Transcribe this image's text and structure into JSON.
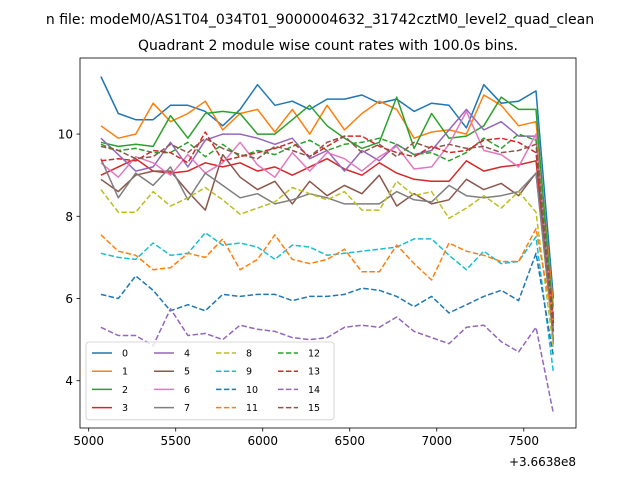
{
  "chart_data": {
    "type": "line",
    "suptitle": "n file: modeM0/AS1T04_034T01_9000004632_31742cztM0_level2_quad_clean",
    "title": "Quadrant 2 module wise count rates with 100.0s bins.",
    "xlabel": "",
    "ylabel": "",
    "x_offset_label": "+3.6638e8",
    "xlim": [
      4950,
      7800
    ],
    "ylim": [
      2.85,
      11.85
    ],
    "xticks": [
      5000,
      5500,
      6000,
      6500,
      7000,
      7500
    ],
    "xtick_labels": [
      "5000",
      "5500",
      "6000",
      "6500",
      "7000",
      "7500"
    ],
    "yticks": [
      4,
      6,
      8,
      10
    ],
    "ytick_labels": [
      "4",
      "6",
      "8",
      "10"
    ],
    "grid": false,
    "legend_position": "lower-left",
    "legend_columns": 4,
    "x": [
      5070,
      5170,
      5270,
      5370,
      5470,
      5570,
      5670,
      5770,
      5870,
      5970,
      6070,
      6170,
      6270,
      6370,
      6470,
      6570,
      6670,
      6770,
      6870,
      6970,
      7070,
      7170,
      7270,
      7370,
      7470,
      7570,
      7670
    ],
    "series": [
      {
        "name": "0",
        "color": "#1f77b4",
        "dash": "solid",
        "values": [
          11.4,
          10.5,
          10.35,
          10.35,
          10.7,
          10.7,
          10.55,
          10.2,
          10.6,
          11.2,
          10.7,
          10.8,
          10.6,
          10.85,
          10.85,
          10.95,
          10.75,
          10.85,
          10.55,
          10.75,
          10.7,
          10.15,
          11.2,
          10.75,
          10.8,
          11.05,
          6.0
        ]
      },
      {
        "name": "1",
        "color": "#ff7f0e",
        "dash": "solid",
        "values": [
          10.2,
          9.9,
          10.0,
          10.75,
          10.3,
          10.5,
          10.8,
          10.1,
          10.5,
          10.6,
          10.05,
          10.6,
          10.0,
          10.7,
          10.1,
          10.5,
          10.8,
          10.6,
          9.9,
          10.05,
          10.1,
          10.0,
          10.95,
          10.7,
          10.2,
          10.3,
          5.8
        ]
      },
      {
        "name": "2",
        "color": "#2ca02c",
        "dash": "solid",
        "values": [
          9.8,
          9.7,
          9.75,
          9.7,
          10.45,
          9.9,
          10.5,
          10.55,
          10.5,
          10.0,
          10.0,
          10.35,
          10.7,
          10.2,
          9.9,
          9.65,
          9.8,
          10.9,
          9.65,
          10.5,
          9.9,
          9.95,
          10.2,
          10.9,
          10.6,
          10.6,
          5.4
        ]
      },
      {
        "name": "3",
        "color": "#d62728",
        "dash": "solid",
        "values": [
          9.0,
          9.2,
          9.4,
          9.1,
          9.05,
          9.1,
          9.3,
          9.2,
          9.3,
          9.1,
          9.2,
          9.0,
          9.2,
          9.4,
          9.15,
          9.0,
          9.3,
          9.05,
          8.9,
          8.85,
          8.85,
          9.35,
          9.1,
          9.2,
          9.25,
          9.35,
          5.5
        ]
      },
      {
        "name": "4",
        "color": "#9467bd",
        "dash": "solid",
        "values": [
          9.9,
          9.5,
          9.1,
          9.2,
          9.8,
          9.2,
          9.85,
          10.0,
          10.0,
          9.9,
          9.75,
          9.9,
          9.4,
          9.6,
          9.1,
          9.6,
          9.35,
          9.75,
          9.5,
          9.6,
          10.1,
          10.6,
          10.1,
          10.3,
          9.95,
          9.95,
          4.9
        ]
      },
      {
        "name": "5",
        "color": "#8c564b",
        "dash": "solid",
        "values": [
          8.9,
          8.6,
          9.0,
          9.1,
          9.1,
          8.6,
          8.15,
          9.5,
          8.95,
          8.65,
          8.85,
          8.3,
          8.85,
          8.5,
          8.75,
          8.55,
          9.0,
          8.25,
          8.55,
          8.3,
          8.4,
          8.9,
          8.65,
          8.8,
          8.5,
          9.05,
          5.2
        ]
      },
      {
        "name": "6",
        "color": "#e377c2",
        "dash": "solid",
        "values": [
          9.3,
          8.95,
          9.45,
          9.3,
          9.0,
          9.5,
          9.05,
          9.3,
          9.8,
          9.25,
          8.95,
          9.55,
          9.1,
          9.55,
          9.4,
          9.1,
          9.45,
          9.7,
          9.15,
          9.2,
          9.75,
          10.55,
          9.6,
          9.5,
          9.2,
          10.0,
          5.3
        ]
      },
      {
        "name": "7",
        "color": "#7f7f7f",
        "dash": "solid",
        "values": [
          9.4,
          8.45,
          9.05,
          8.75,
          9.2,
          8.4,
          9.05,
          8.75,
          8.45,
          8.55,
          8.3,
          8.4,
          8.55,
          8.45,
          8.3,
          8.3,
          8.3,
          8.6,
          8.4,
          8.35,
          8.75,
          8.5,
          8.45,
          8.5,
          8.6,
          9.05,
          5.0
        ]
      },
      {
        "name": "8",
        "color": "#bcbd22",
        "dash": "dashed",
        "values": [
          8.65,
          8.1,
          8.1,
          8.6,
          8.25,
          8.45,
          8.7,
          8.4,
          8.05,
          8.2,
          8.35,
          8.7,
          8.55,
          8.4,
          8.6,
          8.15,
          8.15,
          8.85,
          8.5,
          8.6,
          7.95,
          8.2,
          8.5,
          8.2,
          8.6,
          8.1,
          4.8
        ]
      },
      {
        "name": "9",
        "color": "#17becf",
        "dash": "dashed",
        "values": [
          7.1,
          7.0,
          6.95,
          7.35,
          7.05,
          7.1,
          7.6,
          7.3,
          7.35,
          7.25,
          6.95,
          7.3,
          7.25,
          7.05,
          7.1,
          7.15,
          7.2,
          7.25,
          7.45,
          7.45,
          7.05,
          6.7,
          7.15,
          6.85,
          6.9,
          7.5,
          4.2
        ]
      },
      {
        "name": "10",
        "color": "#1f77b4",
        "dash": "dashed",
        "values": [
          6.1,
          6.0,
          6.55,
          6.2,
          5.7,
          5.85,
          5.7,
          6.1,
          6.05,
          6.1,
          6.1,
          5.95,
          6.05,
          6.05,
          6.1,
          6.25,
          6.2,
          6.05,
          5.8,
          6.05,
          5.65,
          5.85,
          6.05,
          6.2,
          5.95,
          7.1,
          4.6
        ]
      },
      {
        "name": "11",
        "color": "#ff7f0e",
        "dash": "dashed",
        "values": [
          7.55,
          7.15,
          7.05,
          6.7,
          6.75,
          7.1,
          7.0,
          7.45,
          6.7,
          6.95,
          7.55,
          6.95,
          6.85,
          6.95,
          7.2,
          6.65,
          6.65,
          7.3,
          6.85,
          6.45,
          7.35,
          7.15,
          7.05,
          6.9,
          6.9,
          7.7,
          5.4
        ]
      },
      {
        "name": "12",
        "color": "#2ca02c",
        "dash": "dashed",
        "values": [
          9.75,
          9.6,
          9.65,
          9.55,
          9.55,
          9.8,
          9.45,
          9.75,
          9.45,
          9.6,
          9.5,
          9.7,
          9.85,
          9.6,
          9.75,
          9.8,
          9.9,
          9.75,
          9.5,
          9.55,
          9.35,
          9.55,
          9.9,
          9.65,
          10.0,
          9.85,
          5.6
        ]
      },
      {
        "name": "13",
        "color": "#d62728",
        "dash": "dashed",
        "values": [
          9.35,
          9.4,
          9.35,
          9.6,
          9.55,
          9.3,
          10.05,
          9.35,
          9.45,
          9.55,
          9.65,
          9.8,
          9.45,
          9.7,
          9.95,
          9.95,
          9.7,
          9.55,
          9.45,
          9.7,
          9.55,
          9.6,
          9.85,
          9.9,
          9.8,
          9.55,
          5.4
        ]
      },
      {
        "name": "14",
        "color": "#9467bd",
        "dash": "dashed",
        "values": [
          5.3,
          5.1,
          5.1,
          4.85,
          5.75,
          5.1,
          5.15,
          5.0,
          5.35,
          5.25,
          5.2,
          5.05,
          5.0,
          5.05,
          5.3,
          5.35,
          5.3,
          5.55,
          5.2,
          5.05,
          4.9,
          5.3,
          5.35,
          4.95,
          4.7,
          5.3,
          3.2
        ]
      },
      {
        "name": "15",
        "color": "#8c564b",
        "dash": "dashed",
        "values": [
          9.7,
          9.6,
          9.4,
          9.45,
          9.75,
          9.55,
          9.9,
          9.65,
          9.5,
          9.4,
          9.7,
          9.6,
          9.45,
          9.8,
          9.95,
          9.55,
          9.75,
          9.45,
          9.8,
          9.65,
          9.75,
          9.65,
          9.7,
          9.55,
          9.6,
          9.75,
          5.2
        ]
      }
    ]
  }
}
